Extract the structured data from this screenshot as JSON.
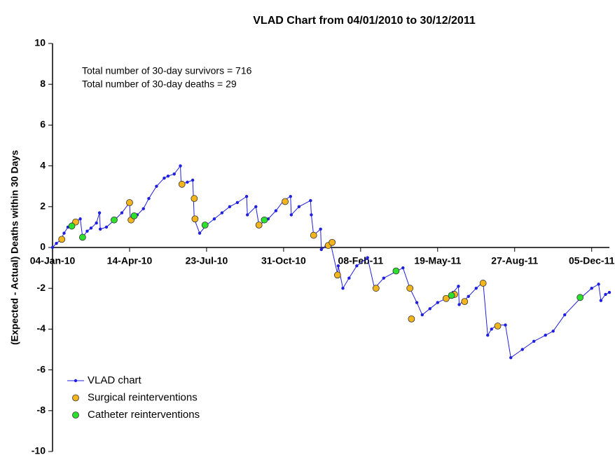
{
  "chart_data": {
    "type": "line",
    "title": "VLAD Chart from 04/01/2010 to 30/12/2011",
    "y_label": "(Expected - Actual) Deaths within 30 Days",
    "annotations": [
      "Total number of 30-day survivors = 716",
      "Total number of 30-day deaths = 29"
    ],
    "xlim": [
      0,
      723
    ],
    "xticks": [
      {
        "value": 0,
        "label": "04-Jan-10"
      },
      {
        "value": 100,
        "label": "14-Apr-10"
      },
      {
        "value": 200,
        "label": "23-Jul-10"
      },
      {
        "value": 300,
        "label": "31-Oct-10"
      },
      {
        "value": 400,
        "label": "08-Feb-11"
      },
      {
        "value": 500,
        "label": "19-May-11"
      },
      {
        "value": 600,
        "label": "27-Aug-11"
      },
      {
        "value": 700,
        "label": "05-Dec-11"
      }
    ],
    "ylim": [
      -10,
      10
    ],
    "yticks": [
      -10,
      -8,
      -6,
      -4,
      -2,
      0,
      2,
      4,
      6,
      8,
      10
    ],
    "legend": "lower left",
    "series": [
      {
        "name": "VLAD chart",
        "color": "#1f1fe0",
        "line": true,
        "x": [
          0,
          5,
          10,
          15,
          20,
          25,
          30,
          36,
          39,
          45,
          50,
          57,
          61,
          62,
          70,
          82,
          90,
          100,
          101,
          110,
          118,
          125,
          135,
          145,
          150,
          158,
          166,
          167,
          175,
          182,
          183,
          184,
          191,
          200,
          210,
          220,
          230,
          240,
          252,
          253,
          264,
          268,
          280,
          290,
          300,
          309,
          310,
          320,
          335,
          336,
          339,
          348,
          349,
          355,
          361,
          370,
          371,
          377,
          385,
          395,
          409,
          418,
          430,
          445,
          455,
          464,
          473,
          480,
          490,
          500,
          511,
          520,
          527,
          528,
          540,
          550,
          559,
          565,
          570,
          577,
          588,
          595,
          610,
          625,
          640,
          650,
          665,
          685,
          700,
          709,
          712,
          718,
          723
        ],
        "values": [
          0,
          0.2,
          0.35,
          0.7,
          1.0,
          1.15,
          1.25,
          1.4,
          0.5,
          0.8,
          0.95,
          1.2,
          1.7,
          0.9,
          1.0,
          1.4,
          1.7,
          2.2,
          1.35,
          1.6,
          1.9,
          2.4,
          3.0,
          3.4,
          3.5,
          3.6,
          4.0,
          3.1,
          3.2,
          3.3,
          2.4,
          1.4,
          0.7,
          1.1,
          1.4,
          1.7,
          2.0,
          2.2,
          2.5,
          1.6,
          2.0,
          1.1,
          1.4,
          1.8,
          2.3,
          2.5,
          1.6,
          2.0,
          2.3,
          1.6,
          0.6,
          0.9,
          -0.1,
          0.05,
          0.2,
          -1.3,
          -0.9,
          -2.0,
          -1.5,
          -0.9,
          -0.5,
          -2.0,
          -1.5,
          -1.2,
          -1.0,
          -2.0,
          -2.7,
          -3.3,
          -3.0,
          -2.7,
          -2.5,
          -2.2,
          -1.9,
          -2.8,
          -2.4,
          -2.0,
          -1.7,
          -4.3,
          -4.0,
          -3.8,
          -3.8,
          -5.4,
          -5.0,
          -4.6,
          -4.3,
          -4.1,
          -3.3,
          -2.5,
          -2.0,
          -1.8,
          -2.6,
          -2.3,
          -2.2
        ]
      },
      {
        "name": "Surgical reinterventions",
        "color": "#f2b51d",
        "line": false,
        "x": [
          12,
          30,
          100,
          102,
          168,
          184,
          185,
          268,
          302,
          339,
          358,
          363,
          370,
          420,
          464,
          466,
          511,
          522,
          535,
          559,
          578
        ],
        "values": [
          0.4,
          1.25,
          2.2,
          1.35,
          3.1,
          2.4,
          1.4,
          1.1,
          2.25,
          0.6,
          0.1,
          0.25,
          -1.35,
          -2.0,
          -2.0,
          -3.5,
          -2.5,
          -2.3,
          -2.65,
          -1.75,
          -3.85
        ]
      },
      {
        "name": "Catheter reinterventions",
        "color": "#2ee02e",
        "line": false,
        "x": [
          25,
          39,
          80,
          106,
          198,
          275,
          446,
          518,
          685
        ],
        "values": [
          1.05,
          0.5,
          1.35,
          1.55,
          1.1,
          1.35,
          -1.15,
          -2.35,
          -2.45
        ]
      }
    ]
  }
}
